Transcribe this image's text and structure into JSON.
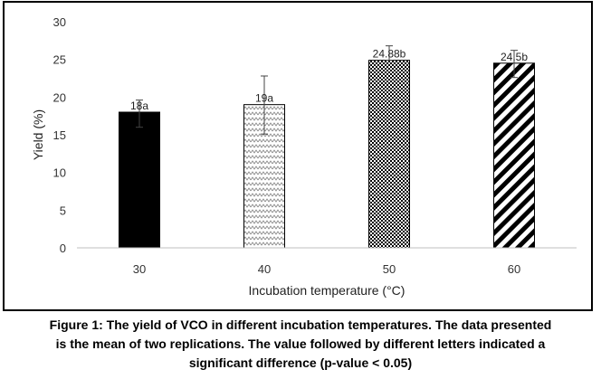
{
  "chart_data": {
    "type": "bar",
    "categories": [
      "30",
      "40",
      "50",
      "60"
    ],
    "values": [
      18,
      19,
      24.88,
      24.5
    ],
    "errors": [
      {
        "low": 16.0,
        "high": 19.6
      },
      {
        "low": 15.1,
        "high": 22.8
      },
      {
        "low": 24.88,
        "high": 26.8
      },
      {
        "low": 22.6,
        "high": 26.2
      }
    ],
    "data_labels": [
      "18a",
      "19a",
      "24.88b",
      "24.5b"
    ],
    "bar_fills": [
      "solid",
      "zigzag",
      "checker",
      "diagonal"
    ],
    "xlabel": "Incubation temperature (°C)",
    "ylabel": "Yield (%)",
    "ylim": [
      0,
      30
    ],
    "yticks": [
      "0",
      "5",
      "10",
      "15",
      "20",
      "25",
      "30"
    ],
    "grid": false,
    "legend": "none",
    "colors": {
      "bar": "#000000",
      "axis": "#bfbfbf",
      "text": "#333333"
    }
  },
  "caption": {
    "line1": "Figure 1: The yield of VCO in different incubation temperatures. The data presented",
    "line2": "is the mean of two replications. The value followed by different letters indicated a",
    "line3": "significant difference (p-value < 0.05)"
  }
}
